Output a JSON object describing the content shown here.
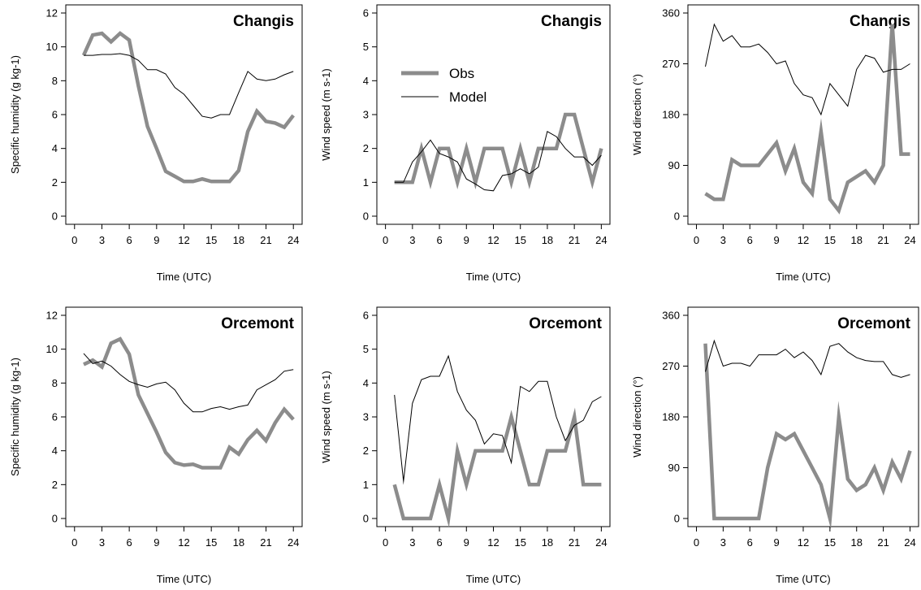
{
  "legend": {
    "obs": "Obs",
    "model": "Model"
  },
  "colors": {
    "obs": "#8c8c8c",
    "model": "#000000"
  },
  "chart_data": [
    {
      "type": "line",
      "title": "Changis",
      "xlabel": "Time (UTC)",
      "ylabel": "Specific humidity (g kg-1)",
      "xlim": [
        0,
        24
      ],
      "ylim": [
        0,
        12
      ],
      "xticks": [
        0,
        3,
        6,
        9,
        12,
        15,
        18,
        21,
        24
      ],
      "yticks": [
        0,
        2,
        4,
        6,
        8,
        10,
        12
      ],
      "yticklabels": [
        "0",
        "2",
        "4",
        "6",
        "8",
        "10",
        "12"
      ],
      "x": [
        1,
        2,
        3,
        4,
        5,
        6,
        7,
        8,
        9,
        10,
        11,
        12,
        13,
        14,
        15,
        16,
        17,
        18,
        19,
        20,
        21,
        22,
        23,
        24
      ],
      "series": [
        {
          "name": "Obs",
          "values": [
            9.5,
            10.7,
            10.8,
            10.3,
            10.8,
            10.4,
            7.7,
            5.3,
            4.0,
            2.65,
            2.35,
            2.05,
            2.05,
            2.2,
            2.05,
            2.05,
            2.05,
            2.7,
            5.0,
            6.2,
            5.6,
            5.5,
            5.25,
            5.95
          ]
        },
        {
          "name": "Model",
          "values": [
            9.5,
            9.5,
            9.55,
            9.55,
            9.6,
            9.5,
            9.2,
            8.65,
            8.65,
            8.4,
            7.6,
            7.2,
            6.55,
            5.9,
            5.8,
            6.0,
            6.0,
            7.3,
            8.55,
            8.1,
            8.0,
            8.1,
            8.35,
            8.55
          ]
        }
      ]
    },
    {
      "type": "line",
      "title": "Changis",
      "xlabel": "Time (UTC)",
      "ylabel": "Wind speed (m s-1)",
      "xlim": [
        0,
        24
      ],
      "ylim": [
        0,
        6
      ],
      "xticks": [
        0,
        3,
        6,
        9,
        12,
        15,
        18,
        21,
        24
      ],
      "yticks": [
        0,
        1,
        2,
        3,
        4,
        5,
        6
      ],
      "yticklabels": [
        "0",
        "1",
        "2",
        "3",
        "4",
        "5",
        "6"
      ],
      "legend": true,
      "x": [
        1,
        2,
        3,
        4,
        5,
        6,
        7,
        8,
        9,
        10,
        11,
        12,
        13,
        14,
        15,
        16,
        17,
        18,
        19,
        20,
        21,
        22,
        23,
        24
      ],
      "series": [
        {
          "name": "Obs",
          "values": [
            1,
            1,
            1,
            2,
            1,
            2,
            2,
            1,
            2,
            1,
            2,
            2,
            2,
            1,
            2,
            1,
            2,
            2,
            2,
            3,
            3,
            2,
            1,
            2
          ]
        },
        {
          "name": "Model",
          "values": [
            1,
            1,
            1.6,
            1.9,
            2.25,
            1.85,
            1.75,
            1.6,
            1.1,
            0.95,
            0.78,
            0.75,
            1.2,
            1.25,
            1.4,
            1.25,
            1.45,
            2.5,
            2.35,
            2.0,
            1.75,
            1.75,
            1.5,
            1.8
          ]
        }
      ]
    },
    {
      "type": "line",
      "title": "Changis",
      "xlabel": "Time (UTC)",
      "ylabel": "Wind direction (°)",
      "xlim": [
        0,
        24
      ],
      "ylim": [
        0,
        360
      ],
      "xticks": [
        0,
        3,
        6,
        9,
        12,
        15,
        18,
        21,
        24
      ],
      "yticks": [
        0,
        90,
        180,
        270,
        360
      ],
      "yticklabels": [
        "0",
        "90",
        "180",
        "270",
        "360"
      ],
      "x": [
        1,
        2,
        3,
        4,
        5,
        6,
        7,
        8,
        9,
        10,
        11,
        12,
        13,
        14,
        15,
        16,
        17,
        18,
        19,
        20,
        21,
        22,
        23,
        24
      ],
      "series": [
        {
          "name": "Obs",
          "values": [
            40,
            30,
            30,
            100,
            90,
            90,
            90,
            110,
            130,
            80,
            120,
            60,
            40,
            150,
            30,
            10,
            60,
            70,
            80,
            60,
            90,
            340,
            110,
            110
          ]
        },
        {
          "name": "Model",
          "values": [
            265,
            340,
            310,
            320,
            300,
            300,
            305,
            290,
            270,
            275,
            235,
            215,
            210,
            180,
            235,
            215,
            195,
            260,
            285,
            280,
            255,
            260,
            260,
            270
          ]
        }
      ]
    },
    {
      "type": "line",
      "title": "Orcemont",
      "xlabel": "Time (UTC)",
      "ylabel": "Specific humidity (g kg-1)",
      "xlim": [
        0,
        24
      ],
      "ylim": [
        0,
        12
      ],
      "xticks": [
        0,
        3,
        6,
        9,
        12,
        15,
        18,
        21,
        24
      ],
      "yticks": [
        0,
        2,
        4,
        6,
        8,
        10,
        12
      ],
      "yticklabels": [
        "0",
        "2",
        "4",
        "6",
        "8",
        "10",
        "12"
      ],
      "x": [
        1,
        2,
        3,
        4,
        5,
        6,
        7,
        8,
        9,
        10,
        11,
        12,
        13,
        14,
        15,
        16,
        17,
        18,
        19,
        20,
        21,
        22,
        23,
        24
      ],
      "series": [
        {
          "name": "Obs",
          "values": [
            9.1,
            9.35,
            8.95,
            10.35,
            10.6,
            9.7,
            7.3,
            6.2,
            5.1,
            3.9,
            3.3,
            3.15,
            3.2,
            3.0,
            3.0,
            3.0,
            4.2,
            3.8,
            4.65,
            5.2,
            4.6,
            5.65,
            6.45,
            5.85
          ]
        },
        {
          "name": "Model",
          "values": [
            9.75,
            9.15,
            9.3,
            9.0,
            8.5,
            8.1,
            7.9,
            7.75,
            7.95,
            8.05,
            7.6,
            6.8,
            6.3,
            6.3,
            6.5,
            6.6,
            6.45,
            6.6,
            6.7,
            7.6,
            7.9,
            8.2,
            8.7,
            8.8
          ]
        }
      ]
    },
    {
      "type": "line",
      "title": "Orcemont",
      "xlabel": "Time (UTC)",
      "ylabel": "Wind speed (m s-1)",
      "xlim": [
        0,
        24
      ],
      "ylim": [
        0,
        6
      ],
      "xticks": [
        0,
        3,
        6,
        9,
        12,
        15,
        18,
        21,
        24
      ],
      "yticks": [
        0,
        1,
        2,
        3,
        4,
        5,
        6
      ],
      "yticklabels": [
        "0",
        "1",
        "2",
        "3",
        "4",
        "5",
        "6"
      ],
      "x": [
        1,
        2,
        3,
        4,
        5,
        6,
        7,
        8,
        9,
        10,
        11,
        12,
        13,
        14,
        15,
        16,
        17,
        18,
        19,
        20,
        21,
        22,
        23,
        24
      ],
      "series": [
        {
          "name": "Obs",
          "values": [
            1,
            0,
            0,
            0,
            0,
            1,
            0,
            2,
            1,
            2,
            2,
            2,
            2,
            3,
            2,
            1,
            1,
            2,
            2,
            2,
            3,
            1,
            1,
            1
          ]
        },
        {
          "name": "Model",
          "values": [
            3.65,
            1.1,
            3.4,
            4.1,
            4.2,
            4.2,
            4.8,
            3.75,
            3.2,
            2.9,
            2.2,
            2.5,
            2.45,
            1.65,
            3.9,
            3.75,
            4.05,
            4.05,
            3.0,
            2.3,
            2.75,
            2.9,
            3.45,
            3.6
          ]
        }
      ]
    },
    {
      "type": "line",
      "title": "Orcemont",
      "xlabel": "Time (UTC)",
      "ylabel": "Wind direction (°)",
      "xlim": [
        0,
        24
      ],
      "ylim": [
        0,
        360
      ],
      "xticks": [
        0,
        3,
        6,
        9,
        12,
        15,
        18,
        21,
        24
      ],
      "yticks": [
        0,
        90,
        180,
        270,
        360
      ],
      "yticklabels": [
        "0",
        "90",
        "180",
        "270",
        "360"
      ],
      "x": [
        1,
        2,
        3,
        4,
        5,
        6,
        7,
        8,
        9,
        10,
        11,
        12,
        13,
        14,
        15,
        16,
        17,
        18,
        19,
        20,
        21,
        22,
        23,
        24
      ],
      "series": [
        {
          "name": "Obs",
          "values": [
            310,
            0,
            0,
            0,
            0,
            0,
            0,
            90,
            150,
            140,
            150,
            120,
            90,
            60,
            0,
            180,
            70,
            50,
            60,
            90,
            50,
            100,
            70,
            120
          ]
        },
        {
          "name": "Model",
          "values": [
            260,
            315,
            270,
            275,
            275,
            270,
            290,
            290,
            290,
            300,
            285,
            295,
            280,
            255,
            305,
            310,
            295,
            285,
            280,
            278,
            278,
            255,
            250,
            255
          ]
        }
      ]
    }
  ]
}
